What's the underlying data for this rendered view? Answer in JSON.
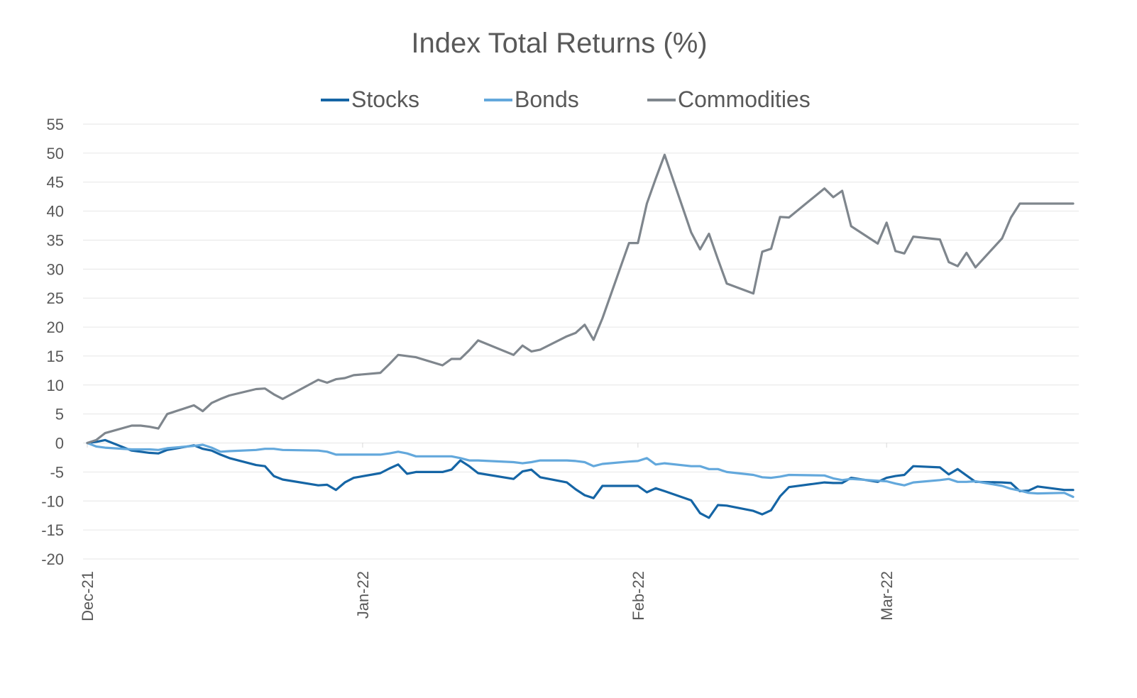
{
  "chart_data": {
    "type": "line",
    "title": "Index Total Returns (%)",
    "xlabel": "",
    "ylabel": "",
    "ylim": [
      -20,
      55
    ],
    "yticks": [
      55,
      50,
      45,
      40,
      35,
      30,
      25,
      20,
      15,
      10,
      5,
      0,
      -5,
      -10,
      -15,
      -20
    ],
    "xticks": [
      "Dec-21",
      "Jan-22",
      "Feb-22",
      "Mar-22"
    ],
    "xlim": [
      "2021-12-01",
      "2022-03-22"
    ],
    "grid": true,
    "legend": "top-center",
    "colors": {
      "Stocks": "#1565a5",
      "Bonds": "#63a8dc",
      "Commodities": "#7f868d"
    },
    "x": [
      "2021-12-01",
      "2021-12-02",
      "2021-12-03",
      "2021-12-06",
      "2021-12-07",
      "2021-12-08",
      "2021-12-09",
      "2021-12-10",
      "2021-12-13",
      "2021-12-14",
      "2021-12-15",
      "2021-12-16",
      "2021-12-17",
      "2021-12-20",
      "2021-12-21",
      "2021-12-22",
      "2021-12-23",
      "2021-12-27",
      "2021-12-28",
      "2021-12-29",
      "2021-12-30",
      "2021-12-31",
      "2022-01-03",
      "2022-01-04",
      "2022-01-05",
      "2022-01-06",
      "2022-01-07",
      "2022-01-10",
      "2022-01-11",
      "2022-01-12",
      "2022-01-13",
      "2022-01-14",
      "2022-01-18",
      "2022-01-19",
      "2022-01-20",
      "2022-01-21",
      "2022-01-24",
      "2022-01-25",
      "2022-01-26",
      "2022-01-27",
      "2022-01-28",
      "2022-01-31",
      "2022-02-01",
      "2022-02-02",
      "2022-02-03",
      "2022-02-04",
      "2022-02-07",
      "2022-02-08",
      "2022-02-09",
      "2022-02-10",
      "2022-02-11",
      "2022-02-14",
      "2022-02-15",
      "2022-02-16",
      "2022-02-17",
      "2022-02-18",
      "2022-02-22",
      "2022-02-23",
      "2022-02-24",
      "2022-02-25",
      "2022-02-28",
      "2022-03-01",
      "2022-03-02",
      "2022-03-03",
      "2022-03-04",
      "2022-03-07",
      "2022-03-08",
      "2022-03-09",
      "2022-03-10",
      "2022-03-11",
      "2022-03-14",
      "2022-03-15",
      "2022-03-16",
      "2022-03-17",
      "2022-03-18",
      "2022-03-21",
      "2022-03-22"
    ],
    "series": [
      {
        "name": "Stocks",
        "values": [
          0.0,
          0.2,
          0.5,
          -1.3,
          -1.5,
          -1.7,
          -1.8,
          -1.2,
          -0.4,
          -1.0,
          -1.3,
          -2.0,
          -2.6,
          -3.8,
          -4.0,
          -5.7,
          -6.3,
          -7.3,
          -7.2,
          -8.1,
          -6.8,
          -6.0,
          -5.2,
          -4.4,
          -3.7,
          -5.3,
          -5.0,
          -5.0,
          -4.6,
          -3.0,
          -4.0,
          -5.2,
          -6.2,
          -4.9,
          -4.6,
          -5.9,
          -6.8,
          -8.0,
          -9.0,
          -9.5,
          -7.4,
          -7.4,
          -7.4,
          -8.5,
          -7.8,
          -8.3,
          -9.9,
          -12.1,
          -12.9,
          -10.7,
          -10.8,
          -11.7,
          -12.3,
          -11.6,
          -9.2,
          -7.6,
          -6.8,
          -6.9,
          -6.9,
          -6.0,
          -6.7,
          -6.0,
          -5.7,
          -5.5,
          -4.0,
          -4.2,
          -5.4,
          -4.5,
          -5.6,
          -6.7,
          -6.8,
          -6.9,
          -8.3,
          -8.2,
          -7.5,
          -8.1,
          -8.1
        ]
      },
      {
        "name": "Bonds",
        "values": [
          0.0,
          -0.6,
          -0.8,
          -1.1,
          -1.1,
          -1.1,
          -1.2,
          -0.9,
          -0.5,
          -0.3,
          -0.8,
          -1.5,
          -1.4,
          -1.2,
          -1.0,
          -1.0,
          -1.2,
          -1.3,
          -1.5,
          -2.0,
          -2.0,
          -2.0,
          -2.0,
          -1.8,
          -1.5,
          -1.8,
          -2.3,
          -2.3,
          -2.3,
          -2.6,
          -3.0,
          -3.0,
          -3.3,
          -3.5,
          -3.3,
          -3.0,
          -3.0,
          -3.1,
          -3.3,
          -4.0,
          -3.6,
          -3.2,
          -3.1,
          -2.6,
          -3.7,
          -3.5,
          -4.0,
          -4.0,
          -4.5,
          -4.5,
          -5.0,
          -5.5,
          -5.9,
          -6.0,
          -5.8,
          -5.5,
          -5.6,
          -6.1,
          -6.4,
          -6.2,
          -6.5,
          -6.6,
          -7.0,
          -7.3,
          -6.8,
          -6.4,
          -6.2,
          -6.7,
          -6.7,
          -6.6,
          -7.4,
          -7.9,
          -8.2,
          -8.6,
          -8.7,
          -8.6,
          -9.3
        ]
      },
      {
        "name": "Commodities",
        "values": [
          0.0,
          0.5,
          1.7,
          3.0,
          3.0,
          2.8,
          2.5,
          5.0,
          6.5,
          5.5,
          6.9,
          7.6,
          8.2,
          9.3,
          9.4,
          8.4,
          7.6,
          10.9,
          10.4,
          11.0,
          11.2,
          11.7,
          12.1,
          13.6,
          15.2,
          15.0,
          14.8,
          13.4,
          14.5,
          14.5,
          16.0,
          17.7,
          15.2,
          16.8,
          15.8,
          16.1,
          18.4,
          19.0,
          20.4,
          17.8,
          21.5,
          34.5,
          34.5,
          41.3,
          45.6,
          49.7,
          36.3,
          33.4,
          36.1,
          31.7,
          27.5,
          25.8,
          33.0,
          33.5,
          39.0,
          38.9,
          43.9,
          42.4,
          43.5,
          37.4,
          34.4,
          38.0,
          33.1,
          32.7,
          35.6,
          35.1,
          31.2,
          30.5,
          32.8,
          30.3,
          35.3,
          38.9,
          41.3,
          41.3,
          41.3,
          41.3,
          41.3
        ]
      }
    ]
  }
}
